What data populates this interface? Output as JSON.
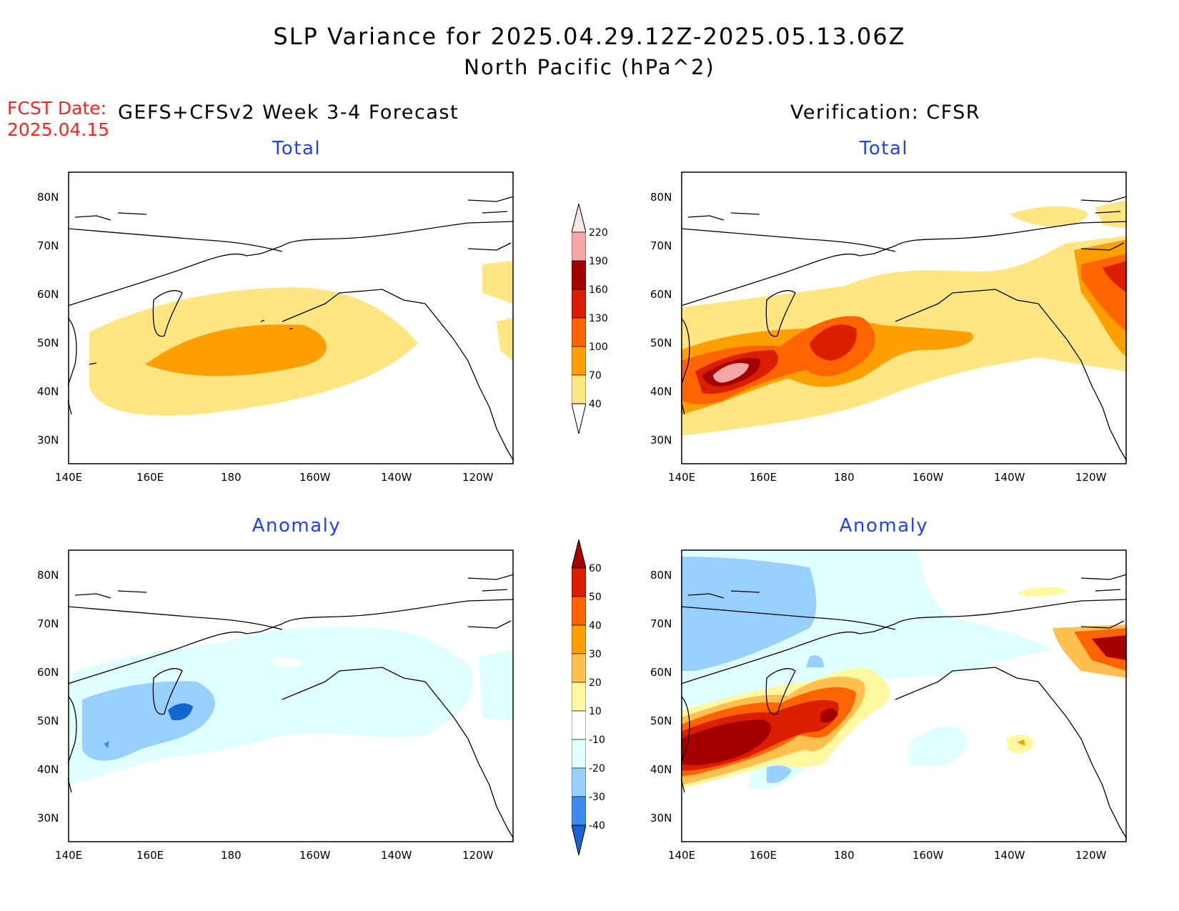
{
  "header": {
    "title": "SLP Variance for 2025.04.29.12Z-2025.05.13.06Z",
    "subtitle": "North Pacific (hPa^2)",
    "fcst_label": "FCST Date:",
    "fcst_date": "2025.04.15",
    "left_heading": "GEFS+CFSv2 Week 3-4 Forecast",
    "right_heading": "Verification: CFSR"
  },
  "panels": {
    "top_left": "Total",
    "top_right": "Total",
    "bottom_left": "Anomaly",
    "bottom_right": "Anomaly"
  },
  "axes": {
    "lat_labels": [
      "80N",
      "70N",
      "60N",
      "50N",
      "40N",
      "30N"
    ],
    "lon_labels": [
      "140E",
      "160E",
      "180",
      "160W",
      "140W",
      "120W"
    ]
  },
  "colorbar_total": {
    "labels": [
      "220",
      "190",
      "160",
      "130",
      "100",
      "70",
      "40"
    ],
    "colors": [
      "#ffe4e4",
      "#f4a6a6",
      "#a50000",
      "#dc1e00",
      "#ff6400",
      "#ffa000",
      "#ffe682"
    ]
  },
  "colorbar_anomaly": {
    "labels": [
      "60",
      "50",
      "40",
      "30",
      "20",
      "10",
      "-10",
      "-20",
      "-30",
      "-40"
    ],
    "colors": [
      "#a50000",
      "#dc1e00",
      "#ff6400",
      "#ffa000",
      "#ffc050",
      "#fff8a0",
      "#ffffff",
      "#e0ffff",
      "#98d0ff",
      "#3a8cf0",
      "#1464d2"
    ]
  }
}
